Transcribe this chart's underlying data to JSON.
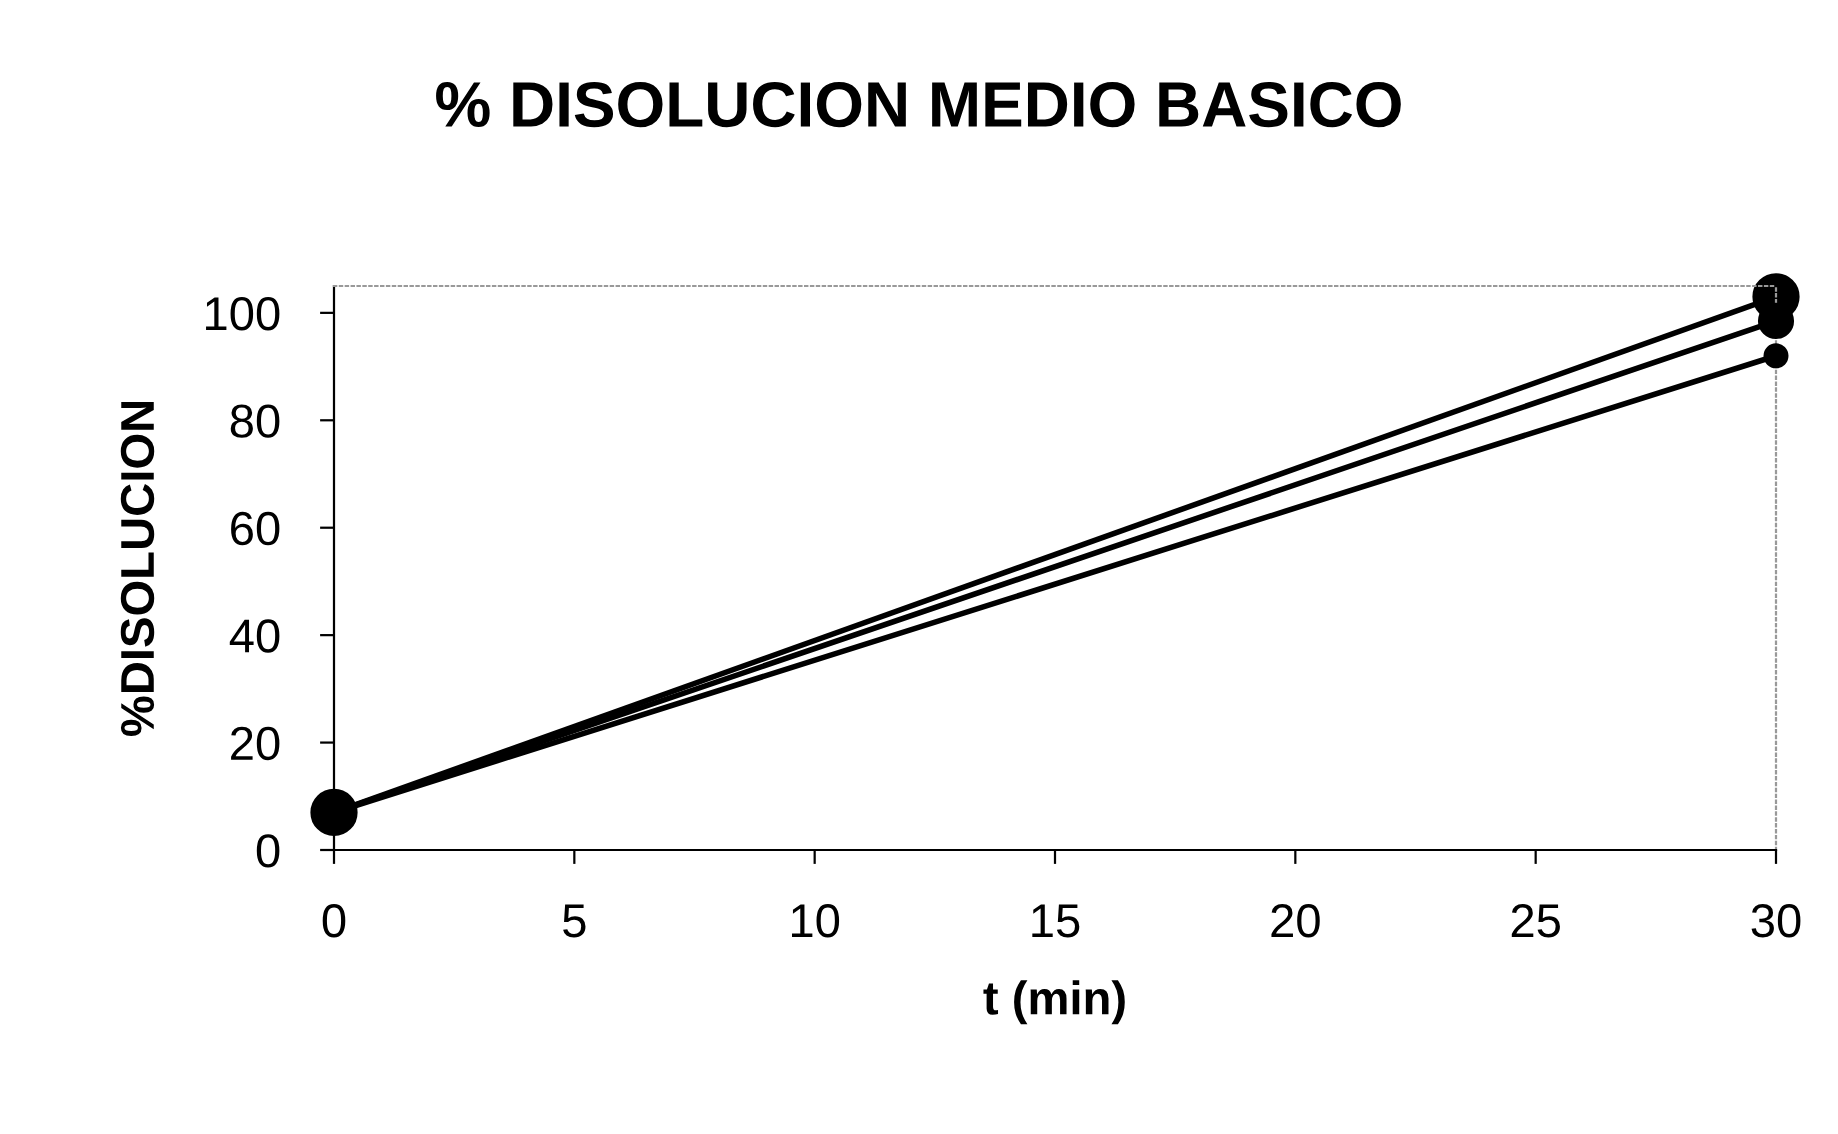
{
  "chart_data": {
    "type": "line",
    "title": "% DISOLUCION MEDIO BASICO",
    "xlabel": "t (min)",
    "ylabel": "%DISOLUCION",
    "x": [
      0,
      30
    ],
    "series": [
      {
        "color": "#000000",
        "values": [
          7,
          103
        ]
      },
      {
        "color": "#000000",
        "values": [
          7,
          98.5
        ]
      },
      {
        "color": "#000000",
        "values": [
          7,
          92
        ]
      }
    ],
    "xlim": [
      0,
      30
    ],
    "xticks": [
      0,
      5,
      10,
      15,
      20,
      25,
      30
    ],
    "ylim": [
      0,
      105
    ],
    "yticks": [
      0,
      20,
      40,
      60,
      80,
      100
    ],
    "grid": false,
    "legend": false,
    "marker": "circle",
    "line_style": "solid"
  }
}
